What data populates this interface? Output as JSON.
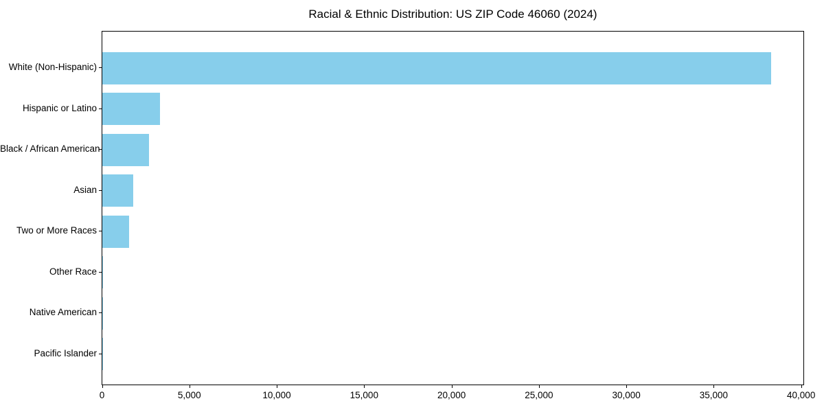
{
  "chart_data": {
    "type": "bar",
    "orientation": "horizontal",
    "title": "Racial & Ethnic Distribution: US ZIP Code 46060 (2024)",
    "categories": [
      "White (Non-Hispanic)",
      "Hispanic or Latino",
      "Black / African American",
      "Asian",
      "Two or More Races",
      "Other Race",
      "Native American",
      "Pacific Islander"
    ],
    "values": [
      38250,
      3300,
      2660,
      1750,
      1530,
      50,
      30,
      15
    ],
    "xlabel": "",
    "ylabel": "",
    "xlim": [
      0,
      40160
    ],
    "xticks": [
      0,
      5000,
      10000,
      15000,
      20000,
      25000,
      30000,
      35000,
      40000
    ],
    "xtick_labels": [
      "0",
      "5,000",
      "10,000",
      "15,000",
      "20,000",
      "25,000",
      "30,000",
      "35,000",
      "40,000"
    ],
    "grid": false,
    "legend": "none",
    "bar_color": "#87ceeb",
    "axis_color": "#000000",
    "background": "#ffffff"
  }
}
